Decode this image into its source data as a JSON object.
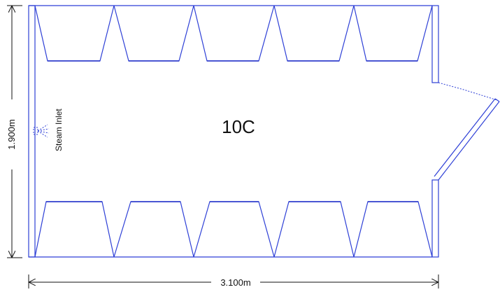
{
  "room": {
    "label": "10C"
  },
  "dimensions": {
    "width": "3.100m",
    "height": "1.900m"
  },
  "annotations": {
    "steam_inlet": "Steam Inlet"
  },
  "stalls": {
    "top_count": 5,
    "bottom_count": 5
  },
  "colors": {
    "walls": "#2d3fd6",
    "dimension_lines": "#111111"
  }
}
